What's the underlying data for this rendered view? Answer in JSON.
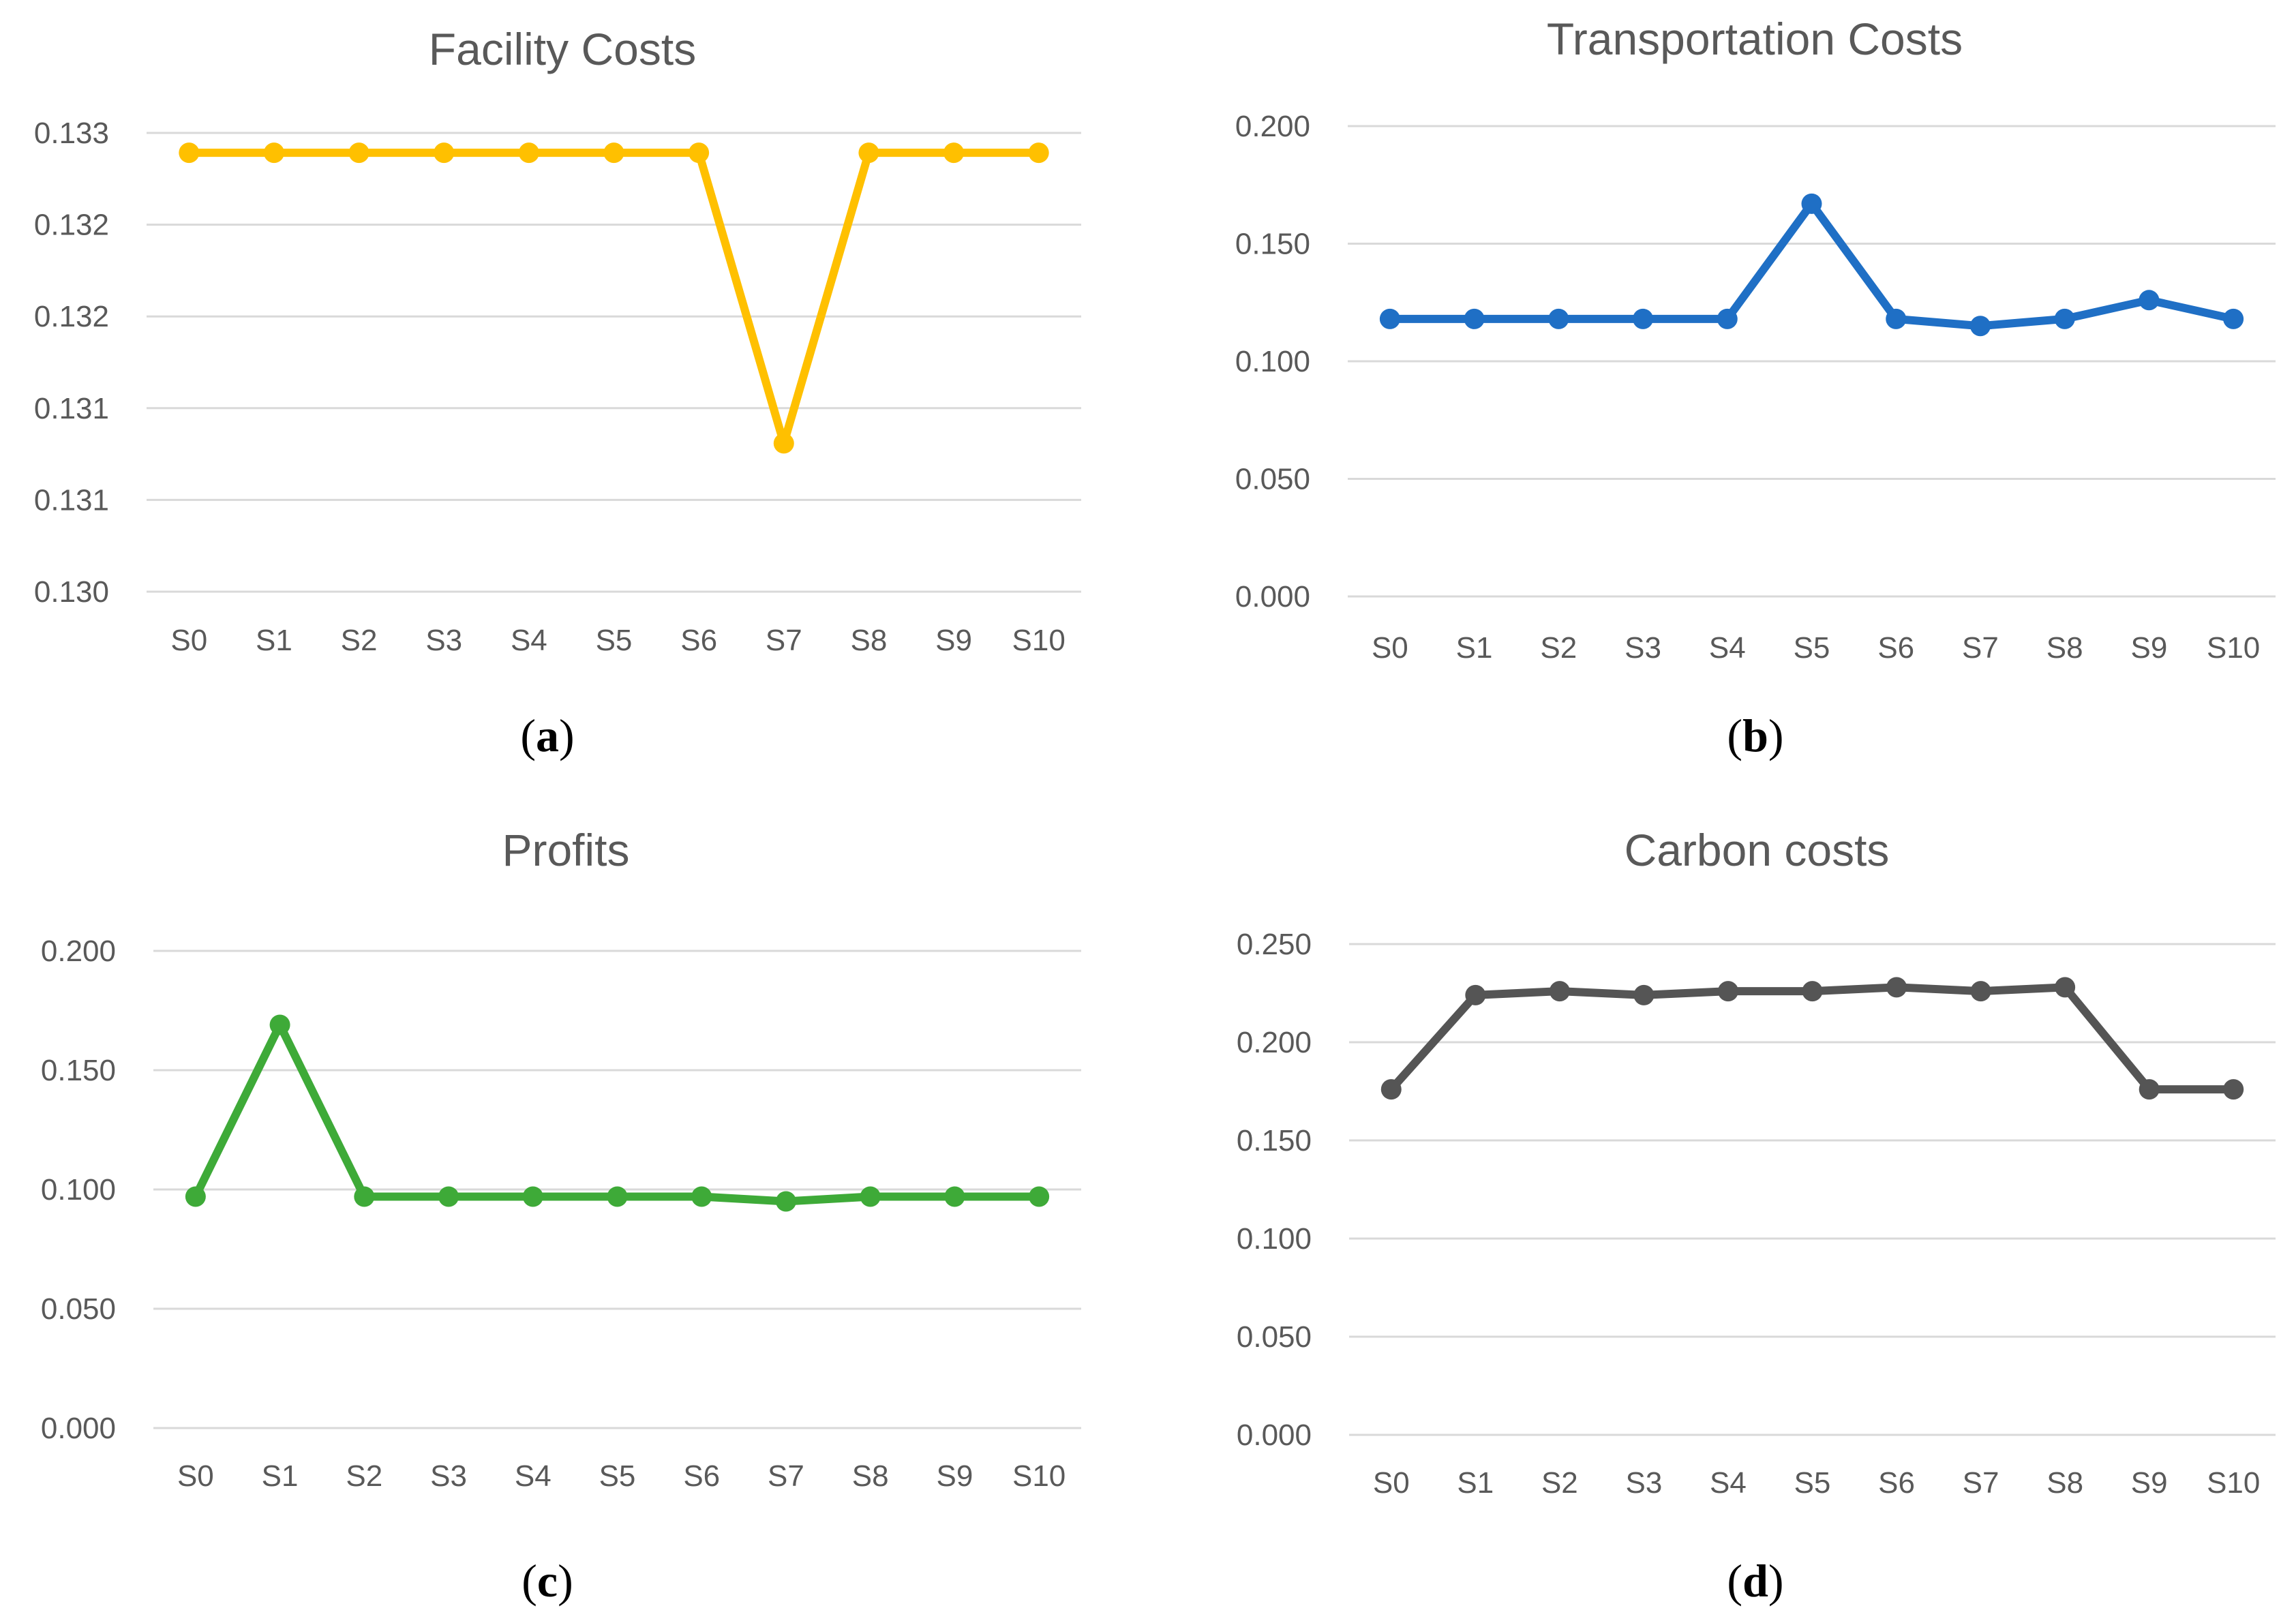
{
  "chart_data": [
    {
      "type": "line",
      "title": "Facility Costs",
      "panel_label": "a",
      "color": "#FFC000",
      "categories": [
        "S0",
        "S1",
        "S2",
        "S3",
        "S4",
        "S5",
        "S6",
        "S7",
        "S8",
        "S9",
        "S10"
      ],
      "values": [
        0.13287,
        0.13287,
        0.13287,
        0.13287,
        0.13287,
        0.13287,
        0.13287,
        0.13097,
        0.13287,
        0.13287,
        0.13287
      ],
      "ylim": [
        0.13,
        0.133
      ],
      "yticks": [
        0.13,
        0.1306,
        0.1312,
        0.1318,
        0.1324,
        0.133
      ],
      "yticklabels": [
        "0.130",
        "0.131",
        "0.131",
        "0.132",
        "0.132",
        "0.133"
      ],
      "xlabel": "",
      "ylabel": "",
      "grid": true
    },
    {
      "type": "line",
      "title": "Transportation Costs",
      "panel_label": "b",
      "color": "#1F6FC5",
      "categories": [
        "S0",
        "S1",
        "S2",
        "S3",
        "S4",
        "S5",
        "S6",
        "S7",
        "S8",
        "S9",
        "S10"
      ],
      "values": [
        0.118,
        0.118,
        0.118,
        0.118,
        0.118,
        0.167,
        0.118,
        0.115,
        0.118,
        0.126,
        0.118
      ],
      "ylim": [
        0.0,
        0.2
      ],
      "yticks": [
        0.0,
        0.05,
        0.1,
        0.15,
        0.2
      ],
      "yticklabels": [
        "0.000",
        "0.050",
        "0.100",
        "0.150",
        "0.200"
      ],
      "xlabel": "",
      "ylabel": "",
      "grid": true
    },
    {
      "type": "line",
      "title": "Profits",
      "panel_label": "c",
      "color": "#3EAA38",
      "categories": [
        "S0",
        "S1",
        "S2",
        "S3",
        "S4",
        "S5",
        "S6",
        "S7",
        "S8",
        "S9",
        "S10"
      ],
      "values": [
        0.097,
        0.169,
        0.097,
        0.097,
        0.097,
        0.097,
        0.097,
        0.095,
        0.097,
        0.097,
        0.097
      ],
      "ylim": [
        0.0,
        0.2
      ],
      "yticks": [
        0.0,
        0.05,
        0.1,
        0.15,
        0.2
      ],
      "yticklabels": [
        "0.000",
        "0.050",
        "0.100",
        "0.150",
        "0.200"
      ],
      "xlabel": "",
      "ylabel": "",
      "grid": true
    },
    {
      "type": "line",
      "title": "Carbon costs",
      "panel_label": "d",
      "color": "#555555",
      "categories": [
        "S0",
        "S1",
        "S2",
        "S3",
        "S4",
        "S5",
        "S6",
        "S7",
        "S8",
        "S9",
        "S10"
      ],
      "values": [
        0.176,
        0.224,
        0.226,
        0.224,
        0.226,
        0.226,
        0.228,
        0.226,
        0.228,
        0.176,
        0.176
      ],
      "ylim": [
        0.0,
        0.25
      ],
      "yticks": [
        0.0,
        0.05,
        0.1,
        0.15,
        0.2,
        0.25
      ],
      "yticklabels": [
        "0.000",
        "0.050",
        "0.100",
        "0.150",
        "0.200",
        "0.250"
      ],
      "xlabel": "",
      "ylabel": "",
      "grid": true
    }
  ]
}
